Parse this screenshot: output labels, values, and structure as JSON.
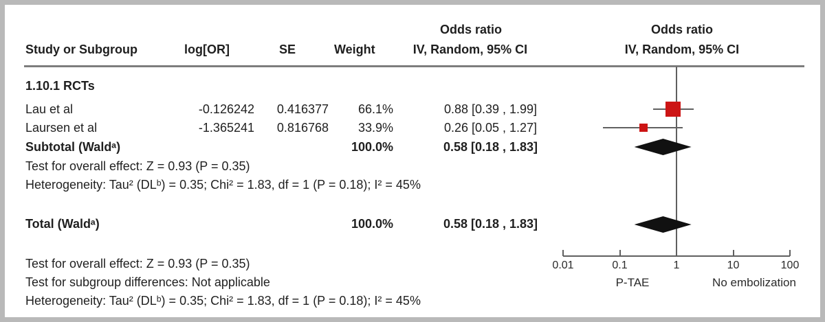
{
  "header": {
    "col_study": "Study or Subgroup",
    "col_logor": "log[OR]",
    "col_se": "SE",
    "col_weight": "Weight",
    "col_or_text_line1": "Odds ratio",
    "col_or_text_line2": "IV, Random, 95% CI",
    "col_or_plot_line1": "Odds ratio",
    "col_or_plot_line2": "IV, Random, 95% CI"
  },
  "group": {
    "label": "1.10.1 RCTs"
  },
  "rows": [
    {
      "study": "Lau et al",
      "logor": "-0.126242",
      "se": "0.416377",
      "weight": "66.1%",
      "ci": "0.88 [0.39 , 1.99]"
    },
    {
      "study": "Laursen et al",
      "logor": "-1.365241",
      "se": "0.816768",
      "weight": "33.9%",
      "ci": "0.26 [0.05 , 1.27]"
    }
  ],
  "subtotal": {
    "label": "Subtotal (Waldᵃ)",
    "weight": "100.0%",
    "ci": "0.58 [0.18 , 1.83]"
  },
  "subgroup_stats": {
    "overall_effect": "Test for overall effect: Z = 0.93 (P = 0.35)",
    "heterogeneity": "Heterogeneity: Tau² (DLᵇ) = 0.35; Chi² = 1.83, df = 1 (P = 0.18); I² = 45%"
  },
  "total": {
    "label": "Total (Waldᵃ)",
    "weight": "100.0%",
    "ci": "0.58 [0.18 , 1.83]"
  },
  "footer": {
    "overall_effect": "Test for overall effect: Z = 0.93 (P = 0.35)",
    "subgroup_differences": "Test for subgroup differences: Not applicable",
    "heterogeneity": "Heterogeneity: Tau² (DLᵇ) = 0.35; Chi² = 1.83, df = 1 (P = 0.18); I² = 45%"
  },
  "colors": {
    "square": "#cc1414",
    "diamond": "#111111",
    "lines": "#5f5f5f",
    "border": "#b9b9b9"
  },
  "chart_data": {
    "type": "forest",
    "x_scale": "log10",
    "x_ticks": [
      0.01,
      0.1,
      1,
      10,
      100
    ],
    "x_range": [
      0.01,
      100
    ],
    "null_line": 1,
    "x_axis_left_label": "P-TAE",
    "x_axis_right_label": "No embolization",
    "effect_measure": "Odds ratio, IV, Random, 95% CI",
    "studies": [
      {
        "name": "Lau et al",
        "or": 0.88,
        "ci_low": 0.39,
        "ci_high": 1.99,
        "weight_pct": 66.1
      },
      {
        "name": "Laursen et al",
        "or": 0.26,
        "ci_low": 0.05,
        "ci_high": 1.27,
        "weight_pct": 33.9
      }
    ],
    "subtotal": {
      "label": "Subtotal (Wald a)",
      "or": 0.58,
      "ci_low": 0.18,
      "ci_high": 1.83,
      "weight_pct": 100.0
    },
    "total": {
      "label": "Total (Wald a)",
      "or": 0.58,
      "ci_low": 0.18,
      "ci_high": 1.83,
      "weight_pct": 100.0
    },
    "subgroup_tests": {
      "z": 0.93,
      "p_overall": 0.35,
      "tau2": 0.35,
      "chi2": 1.83,
      "df": 1,
      "p_het": 0.18,
      "i2_pct": 45
    },
    "total_tests": {
      "z": 0.93,
      "p_overall": 0.35,
      "tau2": 0.35,
      "chi2": 1.83,
      "df": 1,
      "p_het": 0.18,
      "i2_pct": 45
    }
  }
}
